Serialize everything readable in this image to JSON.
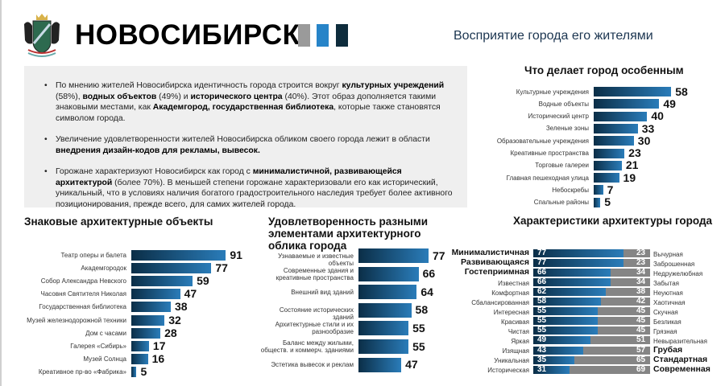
{
  "header": {
    "title": "НОВОСИБИРСК",
    "subtitle": "Восприятие города его жителями",
    "logo_icon": "novosibirsk-coat-of-arms",
    "squares": [
      "#9a9a9a",
      "#2784c8",
      "#0e2c3c"
    ]
  },
  "summary": {
    "bullets": [
      [
        {
          "t": "По мнению жителей Новосибирска идентичность города строится вокруг ",
          "b": false
        },
        {
          "t": "культурных учреждений",
          "b": true
        },
        {
          "t": " (58%), ",
          "b": false
        },
        {
          "t": "водных объектов",
          "b": true
        },
        {
          "t": " (49%) и ",
          "b": false
        },
        {
          "t": "исторического центра",
          "b": true
        },
        {
          "t": " (40%). Этот образ дополняется такими знаковыми местами, как ",
          "b": false
        },
        {
          "t": "Академгород, государственная библиотека",
          "b": true
        },
        {
          "t": ", которые также становятся символом города.",
          "b": false
        }
      ],
      [
        {
          "t": "Увеличение удовлетворенности жителей Новосибирска обликом своего города лежит в области ",
          "b": false
        },
        {
          "t": "внедрения дизайн-кодов для рекламы, вывесок.",
          "b": true
        }
      ],
      [
        {
          "t": "Горожане характеризуют Новосибирск как город с ",
          "b": false
        },
        {
          "t": "минималистичной, развивающейся архитектурой",
          "b": true
        },
        {
          "t": " (более 70%). В меньшей степени горожане характеризовали его как исторический, уникальный, что в условиях наличия богатого градостроительного наследия требует более активного позиционирования, прежде всего, для самих жителей города.",
          "b": false
        }
      ]
    ]
  },
  "colors": {
    "bar_dark": "#0b2e47",
    "bar_light": "#2a7cb9",
    "gray": "#858585",
    "panel": "#efefef"
  },
  "chart_data": [
    {
      "type": "bar",
      "title": "Что делает город особенным",
      "categories": [
        "Культурные учреждения",
        "Водные объекты",
        "Исторический центр",
        "Зеленые зоны",
        "Образовательные учреждения",
        "Креативные пространства",
        "Торговые галереи",
        "Главная пешеходная улица",
        "Небоскребы",
        "Спальные районы"
      ],
      "values": [
        58,
        49,
        40,
        33,
        30,
        23,
        21,
        19,
        7,
        5
      ]
    },
    {
      "type": "bar",
      "title": "Знаковые архитектурные объекты",
      "categories": [
        "Театр оперы и балета",
        "Академгородок",
        "Собор Александра Невского",
        "Часовня Святителя Николая",
        "Государственная библиотека",
        "Музей железнодорожной техники",
        "Дом с часами",
        "Галерея «Сибирь»",
        "Музей Солнца",
        "Креативное пр-во «Фабрика»"
      ],
      "values": [
        91,
        77,
        59,
        47,
        38,
        32,
        28,
        17,
        16,
        5
      ]
    },
    {
      "type": "bar",
      "title": "Удовлетворенность разными элементами архитектурного облика города",
      "categories": [
        "Узнаваемые и известные объекты",
        "Современные здания и креативные пространства",
        "Внешний вид зданий",
        "Состояние исторических зданий",
        "Архитектурные стили и их разнообразие",
        "Баланс между жилыми, обществ. и коммерч. зданиями",
        "Эстетика вывесок и реклам"
      ],
      "values": [
        77,
        66,
        64,
        58,
        55,
        55,
        47
      ]
    },
    {
      "type": "bar",
      "stacked": true,
      "title": "Характеристики архитектуры города",
      "categories": [
        "Минималистичная",
        "Развивающаяся",
        "Гостеприимная",
        "Известная",
        "Комфортная",
        "Сбалансированная",
        "Интересная",
        "Красивая",
        "Чистая",
        "Яркая",
        "Изящная",
        "Уникальная",
        "Историческая"
      ],
      "opposites": [
        "Вычурная",
        "Заброшенная",
        "Недружелюбная",
        "Забытая",
        "Неуютная",
        "Хаотичная",
        "Скучная",
        "Безликая",
        "Грязная",
        "Невыразительная",
        "Грубая",
        "Стандартная",
        "Современная"
      ],
      "left_bold": [
        true,
        true,
        true,
        false,
        false,
        false,
        false,
        false,
        false,
        false,
        false,
        false,
        false
      ],
      "right_bold": [
        false,
        false,
        false,
        false,
        false,
        false,
        false,
        false,
        false,
        false,
        true,
        true,
        true
      ],
      "series": [
        {
          "values": [
            77,
            77,
            66,
            66,
            62,
            58,
            55,
            55,
            55,
            49,
            43,
            35,
            31
          ]
        },
        {
          "values": [
            23,
            23,
            34,
            34,
            38,
            42,
            45,
            45,
            45,
            51,
            57,
            65,
            69
          ]
        }
      ]
    }
  ]
}
